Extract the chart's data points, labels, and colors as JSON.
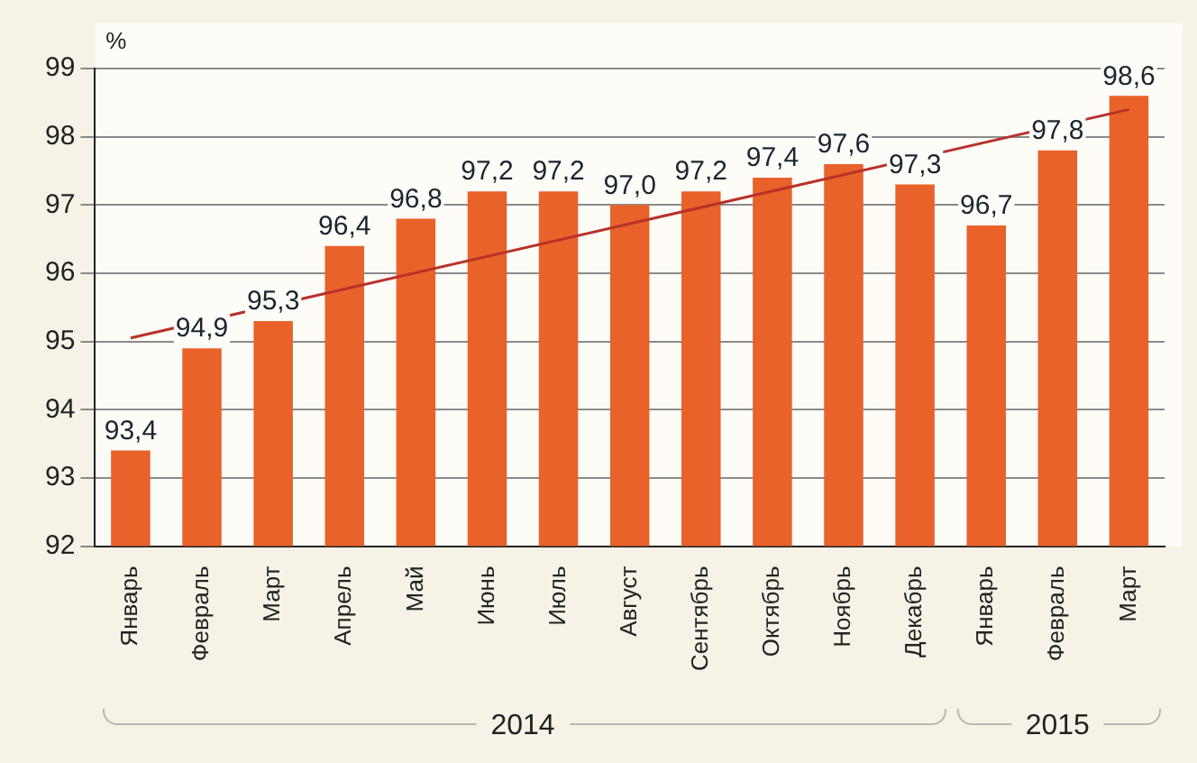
{
  "chart_data": {
    "type": "bar",
    "ylabel": "%",
    "categories": [
      "Январь",
      "Февраль",
      "Март",
      "Апрель",
      "Май",
      "Июнь",
      "Июль",
      "Август",
      "Сентябрь",
      "Октябрь",
      "Ноябрь",
      "Декабрь",
      "Январь",
      "Февраль",
      "Март"
    ],
    "series": [
      {
        "color": "#e8622a",
        "values": [
          93.4,
          94.9,
          95.3,
          96.4,
          96.8,
          97.2,
          97.2,
          97.0,
          97.2,
          97.4,
          97.6,
          97.3,
          96.7,
          97.8,
          98.6
        ],
        "value_labels": [
          "93,4",
          "94,9",
          "95,3",
          "96,4",
          "96,8",
          "97,2",
          "97,2",
          "97,0",
          "97,2",
          "97,4",
          "97,6",
          "97,3",
          "96,7",
          "97,8",
          "98,6"
        ]
      },
      {
        "type": "line",
        "color": "#b8322a",
        "values": [
          95.05,
          null,
          null,
          null,
          null,
          null,
          null,
          null,
          null,
          null,
          null,
          null,
          null,
          null,
          98.4
        ]
      }
    ],
    "annotations": [
      "2014",
      "2015"
    ],
    "ylim": [
      92,
      99
    ],
    "yticks": [
      92,
      93,
      94,
      95,
      96,
      97,
      98,
      99
    ],
    "grid": "y",
    "legend": false
  }
}
